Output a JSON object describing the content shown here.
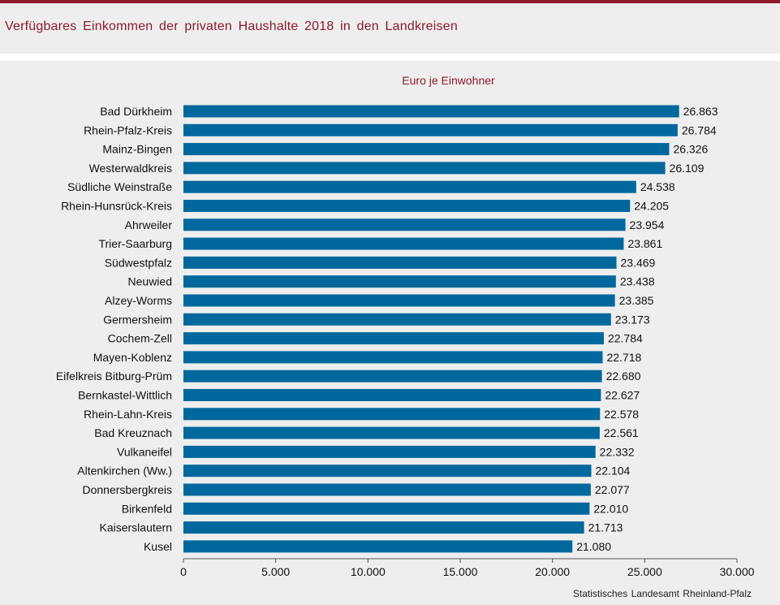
{
  "header": {
    "title": "Verfügbares Einkommen der privaten Haushalte 2018 in den Landkreisen"
  },
  "source": "Statistisches Landesamt Rheinland-Pfalz",
  "colors": {
    "accent": "#8b1a2b",
    "bar": "#00689d",
    "background": "#eeeeee"
  },
  "chart_data": {
    "type": "bar",
    "orientation": "horizontal",
    "title": "Euro je Einwohner",
    "xlabel": "",
    "ylabel": "",
    "xlim": [
      0,
      30000
    ],
    "xticks": [
      0,
      5000,
      10000,
      15000,
      20000,
      25000,
      30000
    ],
    "xtick_labels": [
      "0",
      "5.000",
      "10.000",
      "15.000",
      "20.000",
      "25.000",
      "30.000"
    ],
    "grid": false,
    "categories": [
      "Bad Dürkheim",
      "Rhein-Pfalz-Kreis",
      "Mainz-Bingen",
      "Westerwaldkreis",
      "Südliche Weinstraße",
      "Rhein-Hunsrück-Kreis",
      "Ahrweiler",
      "Trier-Saarburg",
      "Südwestpfalz",
      "Neuwied",
      "Alzey-Worms",
      "Germersheim",
      "Cochem-Zell",
      "Mayen-Koblenz",
      "Eifelkreis Bitburg-Prüm",
      "Bernkastel-Wittlich",
      "Rhein-Lahn-Kreis",
      "Bad Kreuznach",
      "Vulkaneifel",
      "Altenkirchen (Ww.)",
      "Donnersbergkreis",
      "Birkenfeld",
      "Kaiserslautern",
      "Kusel"
    ],
    "values": [
      26863,
      26784,
      26326,
      26109,
      24538,
      24205,
      23954,
      23861,
      23469,
      23438,
      23385,
      23173,
      22784,
      22718,
      22680,
      22627,
      22578,
      22561,
      22332,
      22104,
      22077,
      22010,
      21713,
      21080
    ],
    "value_labels": [
      "26.863",
      "26.784",
      "26.326",
      "26.109",
      "24.538",
      "24.205",
      "23.954",
      "23.861",
      "23.469",
      "23.438",
      "23.385",
      "23.173",
      "22.784",
      "22.718",
      "22.680",
      "22.627",
      "22.578",
      "22.561",
      "22.332",
      "22.104",
      "22.077",
      "22.010",
      "21.713",
      "21.080"
    ]
  }
}
